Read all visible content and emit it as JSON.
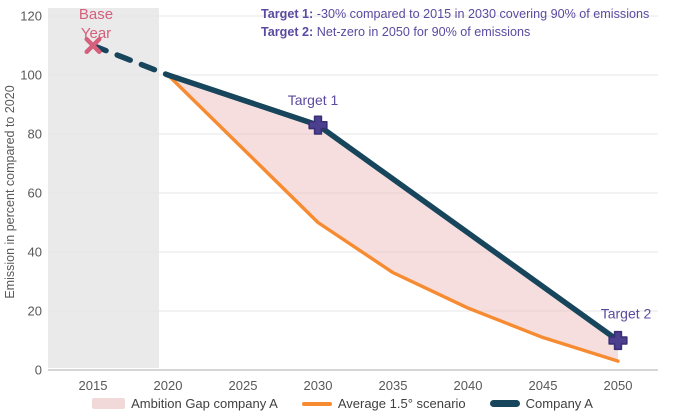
{
  "chart_data": {
    "type": "line",
    "ylabel": "Emission in percent compared to 2020",
    "xlabel": "",
    "x_ticks": [
      2015,
      2020,
      2025,
      2030,
      2035,
      2040,
      2045,
      2050
    ],
    "y_ticks": [
      0,
      20,
      40,
      60,
      80,
      100,
      120
    ],
    "xlim": [
      2012,
      2052.7
    ],
    "ylim": [
      0,
      120
    ],
    "grid": "horizontal",
    "highlight_band": {
      "x_start": 2012,
      "x_end": 2019.4,
      "color": "#eaeaea"
    },
    "series": [
      {
        "name": "Company A (base year segment)",
        "style": "dashed",
        "color": "#17465c",
        "x": [
          2015,
          2020
        ],
        "y": [
          110,
          100
        ]
      },
      {
        "name": "Company A",
        "style": "solid",
        "color": "#17465c",
        "x": [
          2020,
          2030,
          2050
        ],
        "y": [
          100,
          83,
          10
        ]
      },
      {
        "name": "Average 1.5° scenario",
        "style": "solid",
        "color": "#f78b31",
        "x": [
          2020,
          2025,
          2030,
          2035,
          2040,
          2045,
          2050
        ],
        "y": [
          100,
          75,
          50,
          33,
          21,
          11,
          3
        ]
      }
    ],
    "area": {
      "name": "Ambition Gap company A",
      "between": [
        "Company A",
        "Average 1.5° scenario"
      ],
      "color": "#eec3c3",
      "opacity": 0.55
    },
    "markers": [
      {
        "shape": "x",
        "x": 2015,
        "y": 110,
        "color": "#d4607c",
        "label": "Base Year"
      },
      {
        "shape": "plus",
        "x": 2030,
        "y": 83,
        "color": "#4c3f8f",
        "label": "Target 1"
      },
      {
        "shape": "plus",
        "x": 2050,
        "y": 10,
        "color": "#4c3f8f",
        "label": "Target 2"
      }
    ],
    "legend": [
      {
        "label": "Ambition Gap company A",
        "swatch": "area",
        "color": "#f2d9d9"
      },
      {
        "label": "Average 1.5° scenario",
        "swatch": "line",
        "color": "#f78b31"
      },
      {
        "label": "Company A",
        "swatch": "line-thick",
        "color": "#17465c"
      }
    ],
    "legend_position": "bottom"
  },
  "annotations": {
    "line1_label": "Target 1:",
    "line1_text": " -30% compared to 2015 in 2030 covering 90% of emissions",
    "line2_label": "Target 2:",
    "line2_text": " Net-zero in 2050 for 90% of emissions"
  }
}
